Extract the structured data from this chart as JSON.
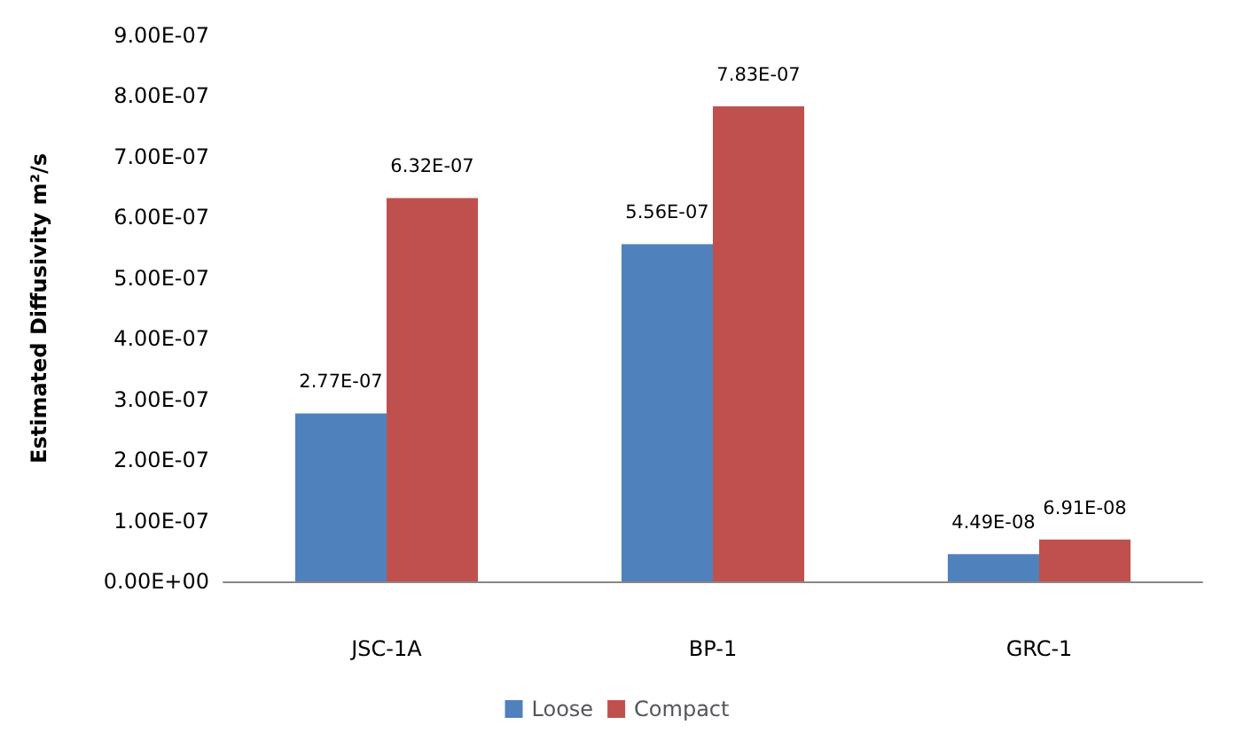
{
  "chart_data": {
    "type": "bar",
    "ylabel": "Estimated Diffusivity m²/s",
    "categories": [
      "JSC-1A",
      "BP-1",
      "GRC-1"
    ],
    "series": [
      {
        "name": "Loose",
        "color": "#4f81bd",
        "values": [
          2.77e-07,
          5.56e-07,
          4.49e-08
        ],
        "value_labels": [
          "2.77E-07",
          "5.56E-07",
          "4.49E-08"
        ]
      },
      {
        "name": "Compact",
        "color": "#c0504d",
        "values": [
          6.32e-07,
          7.83e-07,
          6.91e-08
        ],
        "value_labels": [
          "6.32E-07",
          "7.83E-07",
          "6.91E-08"
        ]
      }
    ],
    "ylim": [
      0,
      9e-07
    ],
    "yticks": [
      {
        "value": 0,
        "label": "0.00E+00"
      },
      {
        "value": 1e-07,
        "label": "1.00E-07"
      },
      {
        "value": 2e-07,
        "label": "2.00E-07"
      },
      {
        "value": 3e-07,
        "label": "3.00E-07"
      },
      {
        "value": 4e-07,
        "label": "4.00E-07"
      },
      {
        "value": 5e-07,
        "label": "5.00E-07"
      },
      {
        "value": 6e-07,
        "label": "6.00E-07"
      },
      {
        "value": 7e-07,
        "label": "7.00E-07"
      },
      {
        "value": 8e-07,
        "label": "8.00E-07"
      },
      {
        "value": 9e-07,
        "label": "9.00E-07"
      }
    ],
    "grid": false,
    "legend": "bottom"
  }
}
